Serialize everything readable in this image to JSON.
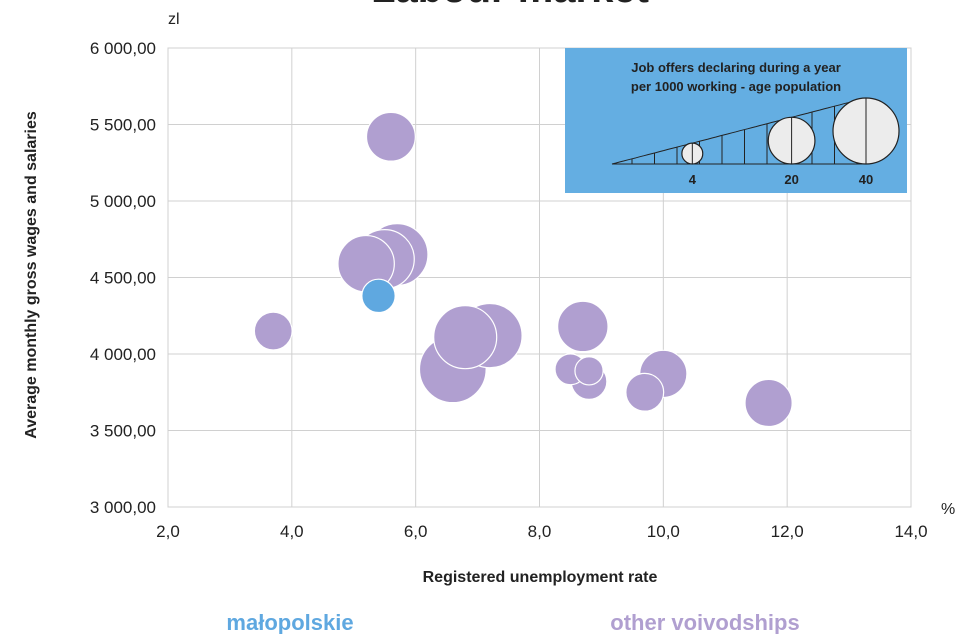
{
  "chart_data": {
    "type": "scatter",
    "title": "Labour market",
    "xlabel": "Registered unemployment rate",
    "ylabel": "Average monthly gross wages and salaries",
    "x_unit": "%",
    "y_unit": "zl",
    "xlim": [
      2.0,
      14.0
    ],
    "ylim": [
      3000,
      6000
    ],
    "xticks": [
      2.0,
      4.0,
      6.0,
      8.0,
      10.0,
      12.0,
      14.0
    ],
    "yticks": [
      3000,
      3500,
      4000,
      4500,
      5000,
      5500,
      6000
    ],
    "xtick_labels": [
      "2,0",
      "4,0",
      "6,0",
      "8,0",
      "10,0",
      "12,0",
      "14,0"
    ],
    "ytick_labels": [
      "3 000,00",
      "3 500,00",
      "4 000,00",
      "4 500,00",
      "5 000,00",
      "5 500,00",
      "6 000,00"
    ],
    "grid": true,
    "size_legend": {
      "title_lines": [
        "Job offers declaring during a year",
        "per 1000 working - age population"
      ],
      "values": [
        4,
        20,
        40
      ],
      "labels": [
        "4",
        "20",
        "40"
      ],
      "position": "top-right"
    },
    "series": [
      {
        "name": "małopolskie",
        "color": "#5fa8e0",
        "points": [
          {
            "x": 5.4,
            "y": 4380,
            "size": 7
          }
        ]
      },
      {
        "name": "other voivodships",
        "color": "#b09fd0",
        "points": [
          {
            "x": 5.6,
            "y": 5420,
            "size": 15
          },
          {
            "x": 5.7,
            "y": 4650,
            "size": 24
          },
          {
            "x": 5.5,
            "y": 4620,
            "size": 22
          },
          {
            "x": 5.2,
            "y": 4590,
            "size": 20
          },
          {
            "x": 3.7,
            "y": 4150,
            "size": 9
          },
          {
            "x": 6.8,
            "y": 4110,
            "size": 25
          },
          {
            "x": 7.2,
            "y": 4120,
            "size": 26
          },
          {
            "x": 6.6,
            "y": 3900,
            "size": 28
          },
          {
            "x": 8.7,
            "y": 4180,
            "size": 16
          },
          {
            "x": 8.5,
            "y": 3900,
            "size": 6
          },
          {
            "x": 8.8,
            "y": 3890,
            "size": 5
          },
          {
            "x": 8.8,
            "y": 3820,
            "size": 8
          },
          {
            "x": 10.0,
            "y": 3870,
            "size": 14
          },
          {
            "x": 9.7,
            "y": 3750,
            "size": 9
          },
          {
            "x": 11.7,
            "y": 3680,
            "size": 14
          }
        ]
      }
    ]
  }
}
